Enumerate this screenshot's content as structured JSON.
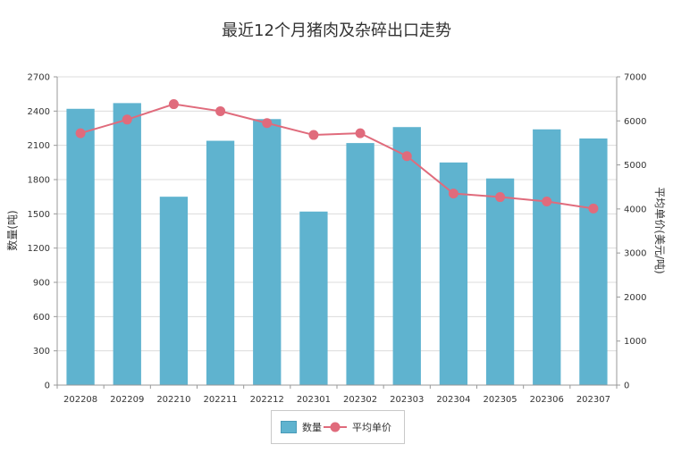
{
  "chart_data": {
    "type": "bar",
    "title": "最近12个月猪肉及杂碎出口走势",
    "categories": [
      "202208",
      "202209",
      "202210",
      "202211",
      "202212",
      "202301",
      "202302",
      "202303",
      "202304",
      "202305",
      "202306",
      "202307"
    ],
    "series": [
      {
        "name": "数量",
        "type": "bar",
        "axis": "left",
        "color": "#5fb3cf",
        "values": [
          2420,
          2470,
          1650,
          2140,
          2330,
          1520,
          2120,
          2260,
          1950,
          1810,
          2240,
          2160
        ]
      },
      {
        "name": "平均单价",
        "type": "line",
        "axis": "right",
        "color": "#e06b7c",
        "values": [
          5720,
          6030,
          6380,
          6220,
          5950,
          5680,
          5720,
          5200,
          4350,
          4270,
          4170,
          4010
        ]
      }
    ],
    "ylabel": "数量(吨)",
    "y2label": "平均单价(美元/吨)",
    "ylim": [
      0,
      2700
    ],
    "yticks": [
      "0",
      "300",
      "600",
      "900",
      "1200",
      "1500",
      "1800",
      "2100",
      "2400",
      "2700"
    ],
    "y2lim": [
      0,
      7000
    ],
    "y2ticks": [
      "0",
      "1000",
      "2000",
      "3000",
      "4000",
      "5000",
      "6000",
      "7000"
    ],
    "grid": true,
    "legend_position": "bottom-center"
  }
}
